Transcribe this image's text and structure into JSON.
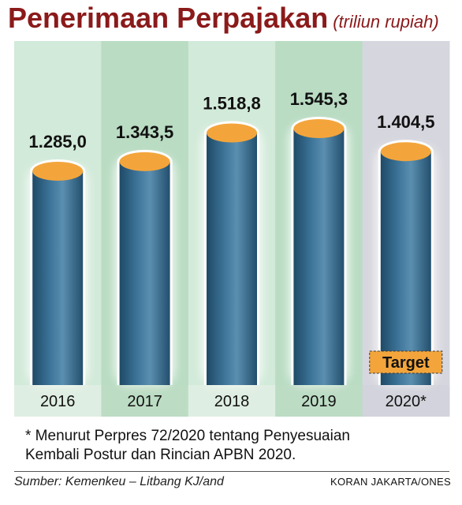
{
  "title": "Penerimaan Perpajakan",
  "unit_label": "(triliun rupiah)",
  "chart_data": {
    "type": "bar",
    "title": "Penerimaan Perpajakan",
    "subtitle": "(triliun rupiah)",
    "categories": [
      "2016",
      "2017",
      "2018",
      "2019",
      "2020*"
    ],
    "values": [
      1285.0,
      1343.5,
      1518.8,
      1545.3,
      1404.5
    ],
    "value_labels": [
      "1.285,0",
      "1.343,5",
      "1.518,8",
      "1.545,3",
      "1.404,5"
    ],
    "annotation": "Target",
    "annotation_category": "2020*",
    "colors": {
      "bar": "#2e6589",
      "bar_highlight": "#5b8fb0",
      "bar_top": "#f3a53c",
      "band_light": "#d2ead9",
      "band_dark": "#b9dcc3",
      "band_target": "#d6d6de",
      "year_strip_light": "#dfeee2",
      "year_strip_dark": "#bcdcc4",
      "year_strip_target": "#d2d3dc",
      "target_box": "#f3a53c"
    }
  },
  "footnote_line1": "* Menurut Perpres 72/2020 tentang Penyesuaian",
  "footnote_line2": "Kembali Postur dan Rincian APBN 2020.",
  "source": "Sumber: Kemenkeu – Litbang KJ/and",
  "credit": "KORAN JAKARTA/ONES"
}
